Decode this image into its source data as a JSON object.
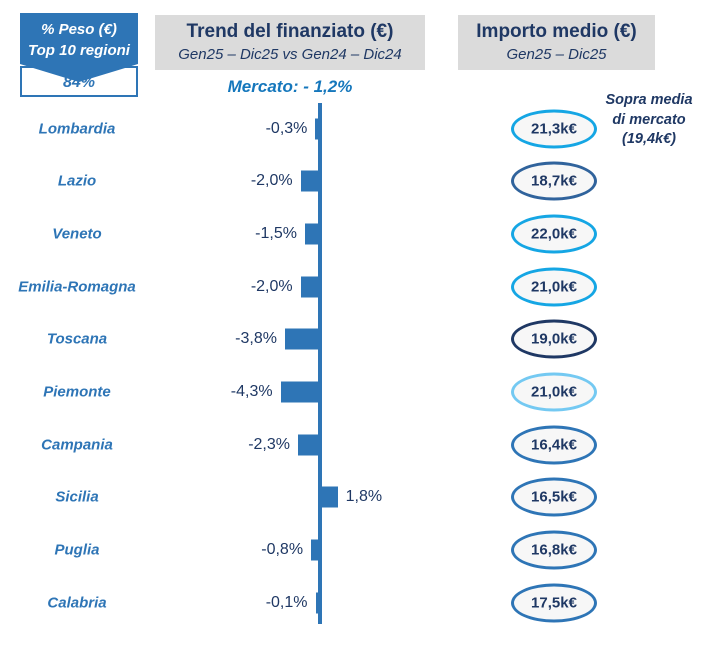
{
  "badge": {
    "line1": "% Peso (€)",
    "line2": "Top 10 regioni",
    "value": "84%"
  },
  "trend_header": {
    "title": "Trend del finanziato (€)",
    "subtitle": "Gen25 – Dic25 vs Gen24 – Dic24"
  },
  "importo_header": {
    "title": "Importo medio (€)",
    "subtitle": "Gen25 – Dic25"
  },
  "market_note": "Mercato: - 1,2%",
  "above_market_note": {
    "line1": "Sopra media",
    "line2": "di mercato",
    "line3": "(19,4k€)"
  },
  "colors": {
    "primary_blue": "#2E75B6",
    "dark_navy": "#1F3864",
    "market_blue": "#1577BC",
    "header_bg": "#DBDBDB",
    "cyan": "#15A6E4",
    "light_cyan": "#74C9F2",
    "steel_blue": "#30639C",
    "oval_fill": "#F7F7F7"
  },
  "chart_data": {
    "type": "bar",
    "orientation": "horizontal",
    "title": "Trend del finanziato (€)",
    "subtitle": "Gen25 – Dic25 vs Gen24 – Dic24",
    "categories": [
      "Lombardia",
      "Lazio",
      "Veneto",
      "Emilia-Romagna",
      "Toscana",
      "Piemonte",
      "Campania",
      "Sicilia",
      "Puglia",
      "Calabria"
    ],
    "series": [
      {
        "name": "Trend del finanziato % (Gen25–Dic25 vs Gen24–Dic24)",
        "unit": "%",
        "values": [
          -0.3,
          -2.0,
          -1.5,
          -2.0,
          -3.8,
          -4.3,
          -2.3,
          1.8,
          -0.8,
          -0.1
        ]
      },
      {
        "name": "Importo medio (Gen25–Dic25)",
        "unit": "k€",
        "values": [
          21.3,
          18.7,
          22.0,
          21.0,
          19.0,
          21.0,
          16.4,
          16.5,
          16.8,
          17.5
        ]
      }
    ],
    "annotations": {
      "market_trend_pct": -1.2,
      "market_avg_importo_keur": 19.4,
      "top10_weight_pct": 84
    },
    "legend": "none",
    "grid": false
  },
  "rows": [
    {
      "region": "Lombardia",
      "trend_pct": -0.3,
      "trend_label": "-0,3%",
      "importo_label": "21,3k€",
      "oval_color": "#15A6E4"
    },
    {
      "region": "Lazio",
      "trend_pct": -2.0,
      "trend_label": "-2,0%",
      "importo_label": "18,7k€",
      "oval_color": "#30639C"
    },
    {
      "region": "Veneto",
      "trend_pct": -1.5,
      "trend_label": "-1,5%",
      "importo_label": "22,0k€",
      "oval_color": "#15A6E4"
    },
    {
      "region": "Emilia-Romagna",
      "trend_pct": -2.0,
      "trend_label": "-2,0%",
      "importo_label": "21,0k€",
      "oval_color": "#15A6E4"
    },
    {
      "region": "Toscana",
      "trend_pct": -3.8,
      "trend_label": "-3,8%",
      "importo_label": "19,0k€",
      "oval_color": "#1F3864"
    },
    {
      "region": "Piemonte",
      "trend_pct": -4.3,
      "trend_label": "-4,3%",
      "importo_label": "21,0k€",
      "oval_color": "#74C9F2"
    },
    {
      "region": "Campania",
      "trend_pct": -2.3,
      "trend_label": "-2,3%",
      "importo_label": "16,4k€",
      "oval_color": "#2E75B6"
    },
    {
      "region": "Sicilia",
      "trend_pct": 1.8,
      "trend_label": "1,8%",
      "importo_label": "16,5k€",
      "oval_color": "#2E75B6"
    },
    {
      "region": "Puglia",
      "trend_pct": -0.8,
      "trend_label": "-0,8%",
      "importo_label": "16,8k€",
      "oval_color": "#2E75B6"
    },
    {
      "region": "Calabria",
      "trend_pct": -0.1,
      "trend_label": "-0,1%",
      "importo_label": "17,5k€",
      "oval_color": "#2E75B6"
    }
  ]
}
